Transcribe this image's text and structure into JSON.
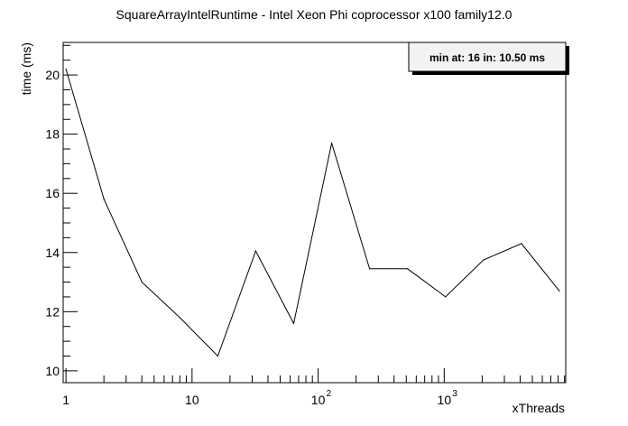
{
  "chart_data": {
    "type": "line",
    "title": "SquareArrayIntelRuntime - Intel Xeon Phi coprocessor x100 family12.0",
    "xlabel": "xThreads",
    "ylabel": "time (ms)",
    "x_scale": "log",
    "xlim": [
      0.95,
      9200
    ],
    "ylim": [
      9.6,
      21.1
    ],
    "grid": false,
    "annotation": "min at: 16 in: 10.50 ms",
    "annotation_position": "top-right",
    "y_ticks": [
      10,
      12,
      14,
      16,
      18,
      20
    ],
    "y_tick_labels": [
      "10",
      "12",
      "14",
      "16",
      "18",
      "20"
    ],
    "x_ticks": [
      1,
      10,
      100,
      1000
    ],
    "x_tick_labels": [
      {
        "base": "1",
        "exp": ""
      },
      {
        "base": "10",
        "exp": ""
      },
      {
        "base": "10",
        "exp": "2"
      },
      {
        "base": "10",
        "exp": "3"
      }
    ],
    "series": [
      {
        "x": [
          1,
          2,
          4,
          8,
          16,
          32,
          64,
          128,
          256,
          512,
          1024,
          2048,
          4096,
          8192
        ],
        "y": [
          20.2,
          15.8,
          13.0,
          11.8,
          10.5,
          14.05,
          11.6,
          17.7,
          13.45,
          13.45,
          12.5,
          13.75,
          14.3,
          12.7
        ]
      }
    ]
  }
}
